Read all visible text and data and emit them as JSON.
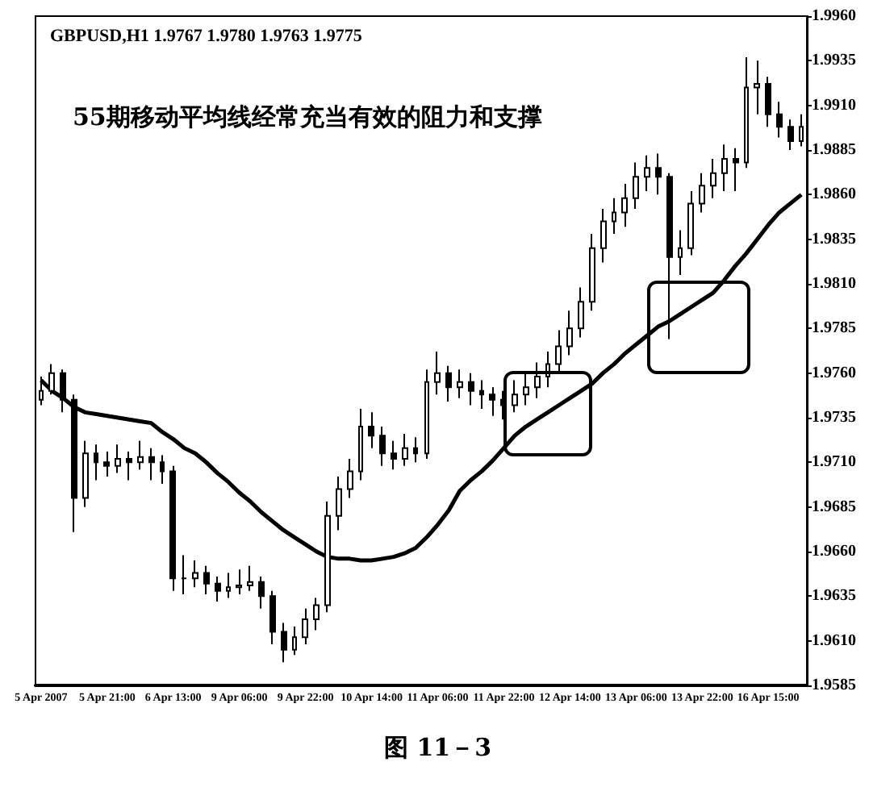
{
  "chart_data": {
    "type": "candlestick",
    "title": "GBPUSD,H1 1.9767 1.9780 1.9763 1.9775",
    "annotations": [
      "55期移动平均线经常充当有效的阻力和支撑",
      "图 11－3"
    ],
    "color": "#000000",
    "categories": [
      "5 Apr 2007",
      null,
      null,
      null,
      null,
      null,
      "5 Apr 21:00",
      null,
      null,
      null,
      null,
      null,
      "6 Apr 13:00",
      null,
      null,
      null,
      null,
      null,
      "9 Apr 06:00",
      null,
      null,
      null,
      null,
      null,
      "9 Apr 22:00",
      null,
      null,
      null,
      null,
      null,
      "10 Apr 14:00",
      null,
      null,
      null,
      null,
      null,
      "11 Apr 06:00",
      null,
      null,
      null,
      null,
      null,
      "11 Apr 22:00",
      null,
      null,
      null,
      null,
      null,
      "12 Apr 14:00",
      null,
      null,
      null,
      null,
      null,
      "13 Apr 06:00",
      null,
      null,
      null,
      null,
      null,
      "13 Apr 22:00",
      null,
      null,
      null,
      null,
      null,
      "16 Apr 15:00",
      null,
      null,
      null
    ],
    "ohlc": [
      [
        1.9745,
        1.9758,
        1.9742,
        1.975
      ],
      [
        1.975,
        1.9765,
        1.9748,
        1.976
      ],
      [
        1.976,
        1.9762,
        1.9738,
        1.9745
      ],
      [
        1.9745,
        1.9748,
        1.9671,
        1.969
      ],
      [
        1.969,
        1.9722,
        1.9685,
        1.9715
      ],
      [
        1.9715,
        1.972,
        1.97,
        1.971
      ],
      [
        1.971,
        1.9716,
        1.9702,
        1.9708
      ],
      [
        1.9708,
        1.972,
        1.9704,
        1.9712
      ],
      [
        1.9712,
        1.9716,
        1.97,
        1.971
      ],
      [
        1.971,
        1.9722,
        1.9706,
        1.9713
      ],
      [
        1.9713,
        1.9718,
        1.97,
        1.971
      ],
      [
        1.971,
        1.9714,
        1.9698,
        1.9705
      ],
      [
        1.9705,
        1.9708,
        1.9638,
        1.9645
      ],
      [
        1.9645,
        1.9658,
        1.9636,
        1.9645
      ],
      [
        1.9645,
        1.9655,
        1.964,
        1.9648
      ],
      [
        1.9648,
        1.9652,
        1.9636,
        1.9642
      ],
      [
        1.9642,
        1.9646,
        1.9632,
        1.9638
      ],
      [
        1.9638,
        1.9648,
        1.9634,
        1.964
      ],
      [
        1.964,
        1.965,
        1.9636,
        1.9641
      ],
      [
        1.9641,
        1.9652,
        1.9638,
        1.9643
      ],
      [
        1.9643,
        1.9646,
        1.9628,
        1.9635
      ],
      [
        1.9635,
        1.9638,
        1.9608,
        1.9615
      ],
      [
        1.9615,
        1.962,
        1.9598,
        1.9605
      ],
      [
        1.9605,
        1.9618,
        1.9602,
        1.9612
      ],
      [
        1.9612,
        1.9628,
        1.9608,
        1.9622
      ],
      [
        1.9622,
        1.9634,
        1.9616,
        1.963
      ],
      [
        1.963,
        1.9688,
        1.9626,
        1.968
      ],
      [
        1.968,
        1.9702,
        1.9672,
        1.9695
      ],
      [
        1.9695,
        1.9712,
        1.969,
        1.9705
      ],
      [
        1.9705,
        1.974,
        1.97,
        1.973
      ],
      [
        1.973,
        1.9738,
        1.9718,
        1.9725
      ],
      [
        1.9725,
        1.973,
        1.9708,
        1.9715
      ],
      [
        1.9715,
        1.9722,
        1.9706,
        1.9712
      ],
      [
        1.9712,
        1.9726,
        1.9708,
        1.9718
      ],
      [
        1.9718,
        1.9724,
        1.971,
        1.9715
      ],
      [
        1.9715,
        1.9762,
        1.9712,
        1.9755
      ],
      [
        1.9755,
        1.9772,
        1.9748,
        1.976
      ],
      [
        1.976,
        1.9764,
        1.9744,
        1.9752
      ],
      [
        1.9752,
        1.9762,
        1.9746,
        1.9755
      ],
      [
        1.9755,
        1.976,
        1.9742,
        1.975
      ],
      [
        1.975,
        1.9756,
        1.974,
        1.9748
      ],
      [
        1.9748,
        1.9752,
        1.9736,
        1.9745
      ],
      [
        1.9745,
        1.975,
        1.9734,
        1.9742
      ],
      [
        1.9742,
        1.9756,
        1.9738,
        1.9748
      ],
      [
        1.9748,
        1.976,
        1.9742,
        1.9752
      ],
      [
        1.9752,
        1.9766,
        1.9746,
        1.9758
      ],
      [
        1.9758,
        1.9772,
        1.9752,
        1.9765
      ],
      [
        1.9765,
        1.9784,
        1.976,
        1.9775
      ],
      [
        1.9775,
        1.9795,
        1.977,
        1.9785
      ],
      [
        1.9785,
        1.9808,
        1.978,
        1.98
      ],
      [
        1.98,
        1.9838,
        1.9795,
        1.983
      ],
      [
        1.983,
        1.9852,
        1.9822,
        1.9845
      ],
      [
        1.9845,
        1.9858,
        1.9838,
        1.985
      ],
      [
        1.985,
        1.9866,
        1.9842,
        1.9858
      ],
      [
        1.9858,
        1.9878,
        1.9852,
        1.987
      ],
      [
        1.987,
        1.9882,
        1.9862,
        1.9875
      ],
      [
        1.9875,
        1.9883,
        1.986,
        1.987
      ],
      [
        1.987,
        1.9872,
        1.9779,
        1.9825
      ],
      [
        1.9825,
        1.984,
        1.9815,
        1.983
      ],
      [
        1.983,
        1.9862,
        1.9826,
        1.9855
      ],
      [
        1.9855,
        1.9872,
        1.985,
        1.9865
      ],
      [
        1.9865,
        1.988,
        1.9858,
        1.9872
      ],
      [
        1.9872,
        1.9888,
        1.9862,
        1.988
      ],
      [
        1.988,
        1.9886,
        1.9862,
        1.9878
      ],
      [
        1.9878,
        1.9937,
        1.9875,
        1.992
      ],
      [
        1.992,
        1.9935,
        1.9905,
        1.9922
      ],
      [
        1.9922,
        1.9926,
        1.9898,
        1.9905
      ],
      [
        1.9905,
        1.9912,
        1.9892,
        1.9898
      ],
      [
        1.9898,
        1.9902,
        1.9885,
        1.989
      ],
      [
        1.989,
        1.9905,
        1.9887,
        1.9898
      ]
    ],
    "series": [
      {
        "type": "line",
        "color": "#000000",
        "values": [
          1.9756,
          1.975,
          1.9746,
          1.9741,
          1.9738,
          1.9737,
          1.9736,
          1.9735,
          1.9734,
          1.9733,
          1.9732,
          1.9727,
          1.9723,
          1.9718,
          1.9715,
          1.971,
          1.9704,
          1.9699,
          1.9693,
          1.9688,
          1.9682,
          1.9677,
          1.9672,
          1.9668,
          1.9664,
          1.966,
          1.9657,
          1.9656,
          1.9656,
          1.9655,
          1.9655,
          1.9656,
          1.9657,
          1.9659,
          1.9662,
          1.9668,
          1.9675,
          1.9683,
          1.9694,
          1.97,
          1.9705,
          1.9711,
          1.9718,
          1.9725,
          1.973,
          1.9734,
          1.9738,
          1.9742,
          1.9746,
          1.975,
          1.9754,
          1.976,
          1.9765,
          1.9771,
          1.9776,
          1.9781,
          1.9786,
          1.9789,
          1.9793,
          1.9797,
          1.9801,
          1.9805,
          1.9812,
          1.982,
          1.9827,
          1.9835,
          1.9843,
          1.985,
          1.9855,
          1.986
        ]
      }
    ],
    "ylim": [
      1.9585,
      1.996
    ],
    "yticks": [
      1.9585,
      {
        "value": 1.961,
        "label": "1.9610"
      },
      1.9635,
      {
        "value": 1.966,
        "label": "1.9660"
      },
      1.9685,
      {
        "value": 1.971,
        "label": "1.9710"
      },
      1.9735,
      {
        "value": 1.976,
        "label": "1.9760"
      },
      1.9785,
      {
        "value": 1.981,
        "label": "1.9810"
      },
      1.9835,
      {
        "value": 1.986,
        "label": "1.9860"
      },
      1.9885,
      {
        "value": 1.991,
        "label": "1.9910"
      },
      1.9935,
      {
        "value": 1.996,
        "label": "1.9960"
      }
    ],
    "grid": false,
    "marker": "none",
    "line_style": "solid"
  }
}
